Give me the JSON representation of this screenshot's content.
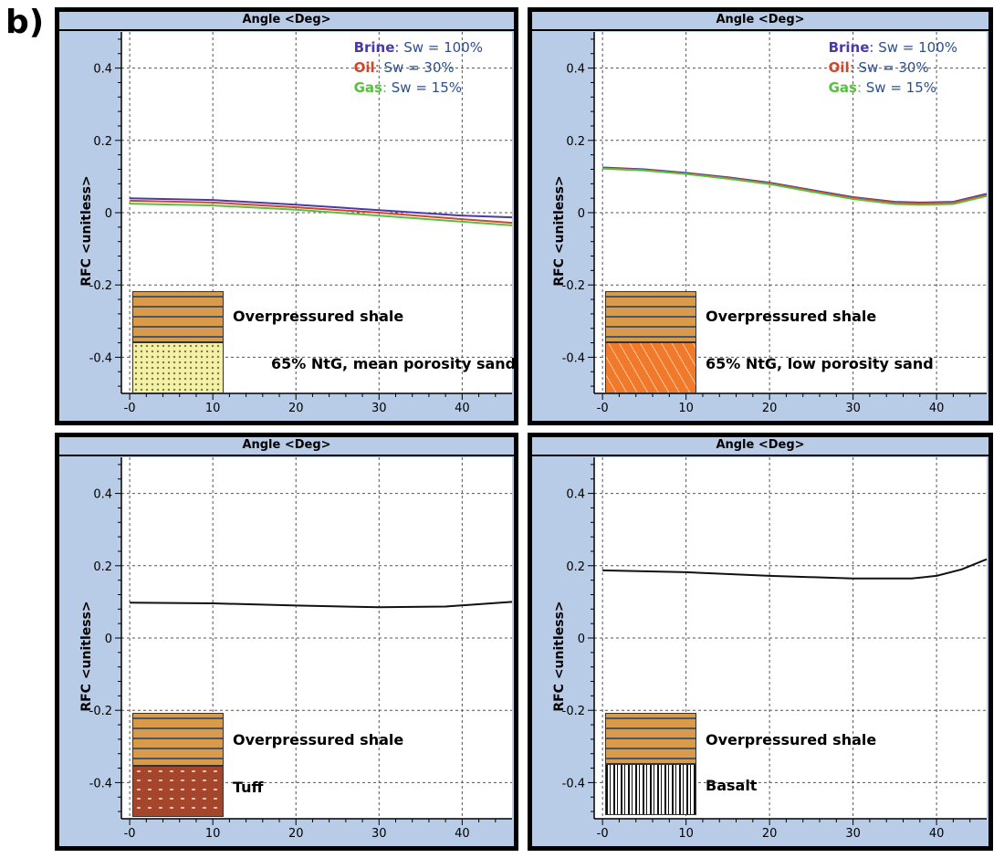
{
  "figure_label": "b)",
  "colors": {
    "brine": "#4a3aa8",
    "oil": "#d2452a",
    "gas": "#58c040",
    "single": "#111111"
  },
  "chart_data": [
    {
      "type": "line",
      "title": "Angle <Deg>",
      "ylabel": "RFC <unitless>",
      "xlim": [
        -1,
        46
      ],
      "ylim": [
        -0.5,
        0.5
      ],
      "xticks": [
        "-0",
        "10",
        "20",
        "30",
        "40"
      ],
      "yticks": [
        "0.4",
        "0.2",
        "0",
        "-0.2",
        "-0.4"
      ],
      "grid": true,
      "legend_position": "top-right",
      "series": [
        {
          "name": "Brine",
          "label": "Sw = 100%",
          "color": "#4a3aa8",
          "x": [
            0,
            10,
            20,
            30,
            40,
            46
          ],
          "y": [
            0.04,
            0.035,
            0.022,
            0.007,
            -0.008,
            -0.013
          ]
        },
        {
          "name": "Oil",
          "label": "Sw = 30%",
          "color": "#d2452a",
          "x": [
            0,
            10,
            20,
            30,
            40,
            46
          ],
          "y": [
            0.033,
            0.028,
            0.015,
            0.0,
            -0.018,
            -0.028
          ]
        },
        {
          "name": "Gas",
          "label": "Sw = 15%",
          "color": "#58c040",
          "x": [
            0,
            10,
            20,
            30,
            40,
            46
          ],
          "y": [
            0.025,
            0.02,
            0.008,
            -0.008,
            -0.025,
            -0.035
          ]
        }
      ],
      "lithology": {
        "upper": "Overpressured shale",
        "lower": "65% NtG, mean porosity sand"
      }
    },
    {
      "type": "line",
      "title": "Angle <Deg>",
      "ylabel": "RFC <unitless>",
      "xlim": [
        -1,
        46
      ],
      "ylim": [
        -0.5,
        0.5
      ],
      "xticks": [
        "-0",
        "10",
        "20",
        "30",
        "40"
      ],
      "yticks": [
        "0.4",
        "0.2",
        "0",
        "-0.2",
        "-0.4"
      ],
      "grid": true,
      "legend_position": "top-right",
      "series": [
        {
          "name": "Brine",
          "label": "Sw = 100%",
          "color": "#4a3aa8",
          "x": [
            0,
            5,
            10,
            15,
            20,
            25,
            30,
            35,
            38,
            42,
            46
          ],
          "y": [
            0.125,
            0.12,
            0.11,
            0.098,
            0.083,
            0.063,
            0.043,
            0.03,
            0.028,
            0.03,
            0.052
          ]
        },
        {
          "name": "Oil",
          "label": "Sw = 30%",
          "color": "#d2452a",
          "x": [
            0,
            5,
            10,
            15,
            20,
            25,
            30,
            35,
            38,
            42,
            46
          ],
          "y": [
            0.123,
            0.118,
            0.108,
            0.096,
            0.081,
            0.061,
            0.041,
            0.028,
            0.026,
            0.028,
            0.049
          ]
        },
        {
          "name": "Gas",
          "label": "Sw = 15%",
          "color": "#58c040",
          "x": [
            0,
            5,
            10,
            15,
            20,
            25,
            30,
            35,
            38,
            42,
            46
          ],
          "y": [
            0.122,
            0.117,
            0.107,
            0.094,
            0.079,
            0.058,
            0.038,
            0.024,
            0.022,
            0.024,
            0.046
          ]
        }
      ],
      "lithology": {
        "upper": "Overpressured shale",
        "lower": "65% NtG, low porosity sand"
      }
    },
    {
      "type": "line",
      "title": "Angle <Deg>",
      "ylabel": "RFC <unitless>",
      "xlim": [
        -1,
        46
      ],
      "ylim": [
        -0.5,
        0.5
      ],
      "xticks": [
        "-0",
        "10",
        "20",
        "30",
        "40"
      ],
      "yticks": [
        "0.4",
        "0.2",
        "0",
        "-0.2",
        "-0.4"
      ],
      "grid": true,
      "series": [
        {
          "color": "#111111",
          "x": [
            0,
            10,
            20,
            30,
            38,
            46
          ],
          "y": [
            0.098,
            0.096,
            0.09,
            0.085,
            0.087,
            0.1
          ]
        }
      ],
      "lithology": {
        "upper": "Overpressured shale",
        "lower": "Tuff"
      }
    },
    {
      "type": "line",
      "title": "Angle <Deg>",
      "ylabel": "RFC <unitless>",
      "xlim": [
        -1,
        46
      ],
      "ylim": [
        -0.5,
        0.5
      ],
      "xticks": [
        "-0",
        "10",
        "20",
        "30",
        "40"
      ],
      "yticks": [
        "0.4",
        "0.2",
        "0",
        "-0.2",
        "-0.4"
      ],
      "grid": true,
      "series": [
        {
          "color": "#111111",
          "x": [
            0,
            10,
            20,
            30,
            37,
            40,
            43,
            46
          ],
          "y": [
            0.187,
            0.182,
            0.172,
            0.165,
            0.165,
            0.172,
            0.19,
            0.218
          ]
        }
      ],
      "lithology": {
        "upper": "Overpressured shale",
        "lower": "Basalt"
      }
    }
  ]
}
